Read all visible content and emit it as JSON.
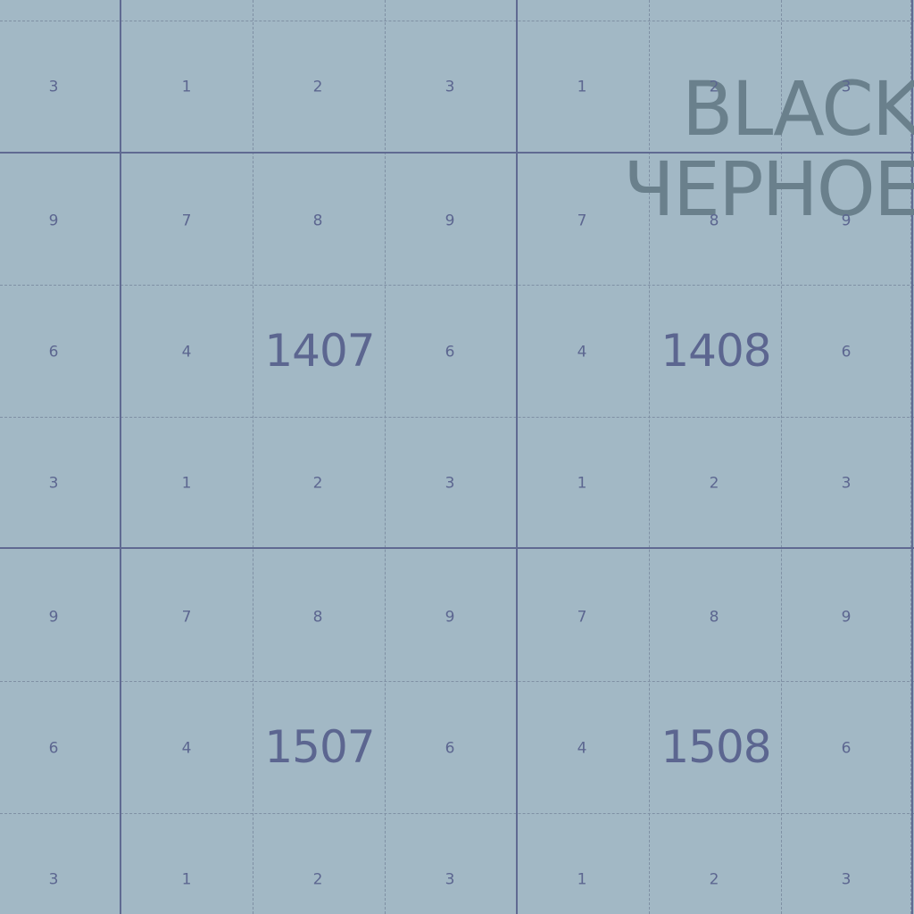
{
  "grid": {
    "rows": [
      [
        "3",
        "1",
        "2",
        "3",
        "1",
        "2",
        "3"
      ],
      [
        "9",
        "7",
        "8",
        "9",
        "7",
        "8",
        "9"
      ],
      [
        "6",
        "4",
        "",
        "6",
        "4",
        "",
        "6"
      ],
      [
        "3",
        "1",
        "2",
        "3",
        "1",
        "2",
        "3"
      ],
      [
        "9",
        "7",
        "8",
        "9",
        "7",
        "8",
        "9"
      ],
      [
        "6",
        "4",
        "",
        "6",
        "4",
        "",
        "6"
      ],
      [
        "3",
        "1",
        "2",
        "3",
        "1",
        "2",
        "3"
      ]
    ]
  },
  "sheets": [
    {
      "label": "1407"
    },
    {
      "label": "1408"
    },
    {
      "label": "1507"
    },
    {
      "label": "1508"
    }
  ],
  "watermark": {
    "line1": "BLACK",
    "line2": "ЧЕРНОЕ"
  },
  "colors": {
    "background": "#a2b8c5",
    "major_grid": "#606a92",
    "minor_grid": "#7f90a4",
    "labels": "#5c6690",
    "watermark": "#6a808c"
  }
}
